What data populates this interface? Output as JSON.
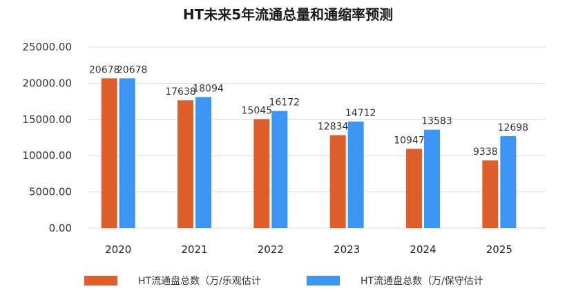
{
  "chart_data": {
    "type": "bar",
    "title": "HT未来5年流通总量和通缩率预测",
    "xlabel": "",
    "ylabel": "",
    "categories": [
      "2020",
      "2021",
      "2022",
      "2023",
      "2024",
      "2025"
    ],
    "series": [
      {
        "name": "HT流通盘总数（万/乐观估计",
        "color": "#de5f2c",
        "values": [
          20678,
          17638,
          15045,
          12834,
          10947,
          9338
        ]
      },
      {
        "name": "HT流通盘总数（万/保守估计",
        "color": "#3d95f3",
        "values": [
          20678,
          18094,
          16172,
          14712,
          13583,
          12698
        ]
      }
    ],
    "ylim": [
      0,
      25000
    ],
    "yticks": [
      "0.00",
      "5000.00",
      "10000.00",
      "15000.00",
      "20000.00",
      "25000.00"
    ],
    "grid": true,
    "legend_position": "bottom"
  }
}
